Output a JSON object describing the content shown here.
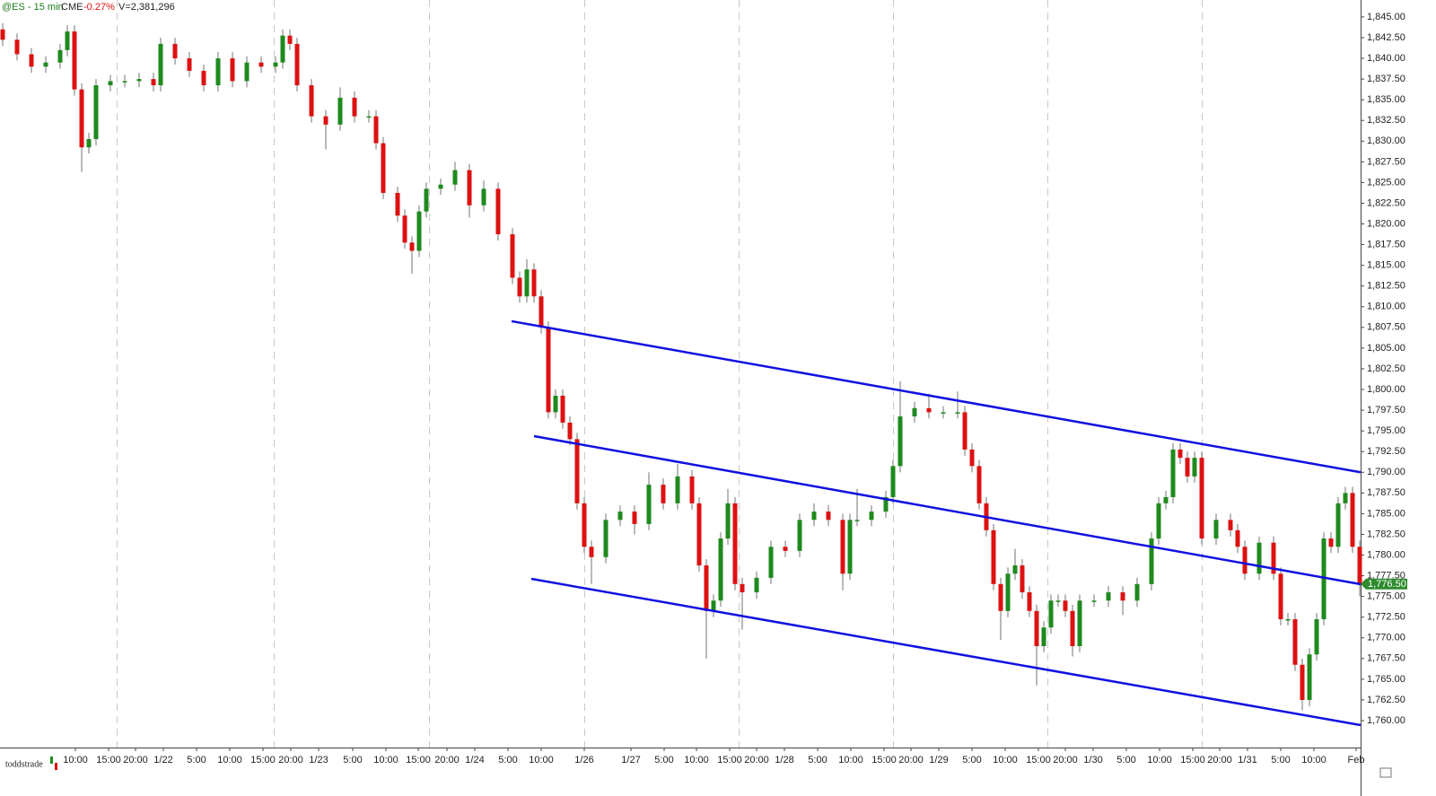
{
  "header": {
    "symbol": "@ES - 15 min",
    "exchange": "CME",
    "change": "-0.27%",
    "volume": "V=2,381,296"
  },
  "footer": {
    "user": "toddstrade"
  },
  "chart_data": {
    "type": "candlestick",
    "colors": {
      "up": "#1e8a1e",
      "down": "#dd1111",
      "wick": "#8a8a8a",
      "channel": "#1010e0",
      "last": "#2e8b2e"
    },
    "xlim": [
      0,
      1516
    ],
    "ylim": [
      1756.75,
      1847.05
    ],
    "session_breaks": [
      130,
      305,
      478,
      651,
      823,
      995,
      1167,
      1339
    ],
    "xticks": [
      {
        "value": 84,
        "label": "10:00"
      },
      {
        "value": 121,
        "label": "15:00"
      },
      {
        "value": 151,
        "label": "20:00"
      },
      {
        "value": 182,
        "label": "1/22"
      },
      {
        "value": 219,
        "label": "5:00"
      },
      {
        "value": 256,
        "label": "10:00"
      },
      {
        "value": 293,
        "label": "15:00"
      },
      {
        "value": 324,
        "label": "20:00"
      },
      {
        "value": 355,
        "label": "1/23"
      },
      {
        "value": 393,
        "label": "5:00"
      },
      {
        "value": 430,
        "label": "10:00"
      },
      {
        "value": 466,
        "label": "15:00"
      },
      {
        "value": 498,
        "label": "20:00"
      },
      {
        "value": 529,
        "label": "1/24"
      },
      {
        "value": 566,
        "label": "5:00"
      },
      {
        "value": 603,
        "label": "10:00"
      },
      {
        "value": 651,
        "label": "1/26"
      },
      {
        "value": 703,
        "label": "1/27"
      },
      {
        "value": 740,
        "label": "5:00"
      },
      {
        "value": 776,
        "label": "10:00"
      },
      {
        "value": 813,
        "label": "15:00"
      },
      {
        "value": 843,
        "label": "20:00"
      },
      {
        "value": 874,
        "label": "1/28"
      },
      {
        "value": 911,
        "label": "5:00"
      },
      {
        "value": 948,
        "label": "10:00"
      },
      {
        "value": 985,
        "label": "15:00"
      },
      {
        "value": 1015,
        "label": "20:00"
      },
      {
        "value": 1046,
        "label": "1/29"
      },
      {
        "value": 1083,
        "label": "5:00"
      },
      {
        "value": 1120,
        "label": "10:00"
      },
      {
        "value": 1157,
        "label": "15:00"
      },
      {
        "value": 1187,
        "label": "20:00"
      },
      {
        "value": 1218,
        "label": "1/30"
      },
      {
        "value": 1255,
        "label": "5:00"
      },
      {
        "value": 1292,
        "label": "10:00"
      },
      {
        "value": 1329,
        "label": "15:00"
      },
      {
        "value": 1359,
        "label": "20:00"
      },
      {
        "value": 1390,
        "label": "1/31"
      },
      {
        "value": 1427,
        "label": "5:00"
      },
      {
        "value": 1464,
        "label": "10:00"
      },
      {
        "value": 1511,
        "label": "Feb"
      }
    ],
    "yticks": [
      {
        "value": 1760,
        "label": "1,760.00"
      },
      {
        "value": 1762.5,
        "label": "1,762.50"
      },
      {
        "value": 1765,
        "label": "1,765.00"
      },
      {
        "value": 1767.5,
        "label": "1,767.50"
      },
      {
        "value": 1770,
        "label": "1,770.00"
      },
      {
        "value": 1772.5,
        "label": "1,772.50"
      },
      {
        "value": 1775,
        "label": "1,775.00"
      },
      {
        "value": 1777.5,
        "label": "1,777.50"
      },
      {
        "value": 1780,
        "label": "1,780.00"
      },
      {
        "value": 1782.5,
        "label": "1,782.50"
      },
      {
        "value": 1785,
        "label": "1,785.00"
      },
      {
        "value": 1787.5,
        "label": "1,787.50"
      },
      {
        "value": 1790,
        "label": "1,790.00"
      },
      {
        "value": 1792.5,
        "label": "1,792.50"
      },
      {
        "value": 1795,
        "label": "1,795.00"
      },
      {
        "value": 1797.5,
        "label": "1,797.50"
      },
      {
        "value": 1800,
        "label": "1,800.00"
      },
      {
        "value": 1802.5,
        "label": "1,802.50"
      },
      {
        "value": 1805,
        "label": "1,805.00"
      },
      {
        "value": 1807.5,
        "label": "1,807.50"
      },
      {
        "value": 1810,
        "label": "1,810.00"
      },
      {
        "value": 1812.5,
        "label": "1,812.50"
      },
      {
        "value": 1815,
        "label": "1,815.00"
      },
      {
        "value": 1817.5,
        "label": "1,817.50"
      },
      {
        "value": 1820,
        "label": "1,820.00"
      },
      {
        "value": 1822.5,
        "label": "1,822.50"
      },
      {
        "value": 1825,
        "label": "1,825.00"
      },
      {
        "value": 1827.5,
        "label": "1,827.50"
      },
      {
        "value": 1830,
        "label": "1,830.00"
      },
      {
        "value": 1832.5,
        "label": "1,832.50"
      },
      {
        "value": 1835,
        "label": "1,835.00"
      },
      {
        "value": 1837.5,
        "label": "1,837.50"
      },
      {
        "value": 1840,
        "label": "1,840.00"
      },
      {
        "value": 1842.5,
        "label": "1,842.50"
      },
      {
        "value": 1845,
        "label": "1,845.00"
      }
    ],
    "last_price": {
      "value": 1776.5,
      "label": "1,776.50"
    },
    "channel_lines": [
      {
        "x": [
          570,
          1516
        ],
        "y": [
          1808.25,
          1790
        ]
      },
      {
        "x": [
          595,
          1516
        ],
        "y": [
          1794.37,
          1776.48
        ]
      },
      {
        "x": [
          592,
          1516
        ],
        "y": [
          1777.13,
          1759.46
        ]
      }
    ],
    "x": [
      0,
      16,
      32,
      48,
      64,
      72,
      80,
      88,
      96,
      104,
      120,
      136,
      152,
      168,
      176,
      192,
      208,
      224,
      240,
      256,
      272,
      288,
      304,
      312,
      320,
      328,
      344,
      360,
      376,
      392,
      408,
      416,
      424,
      440,
      448,
      456,
      464,
      472,
      488,
      504,
      520,
      536,
      552,
      568,
      576,
      584,
      592,
      600,
      608,
      616,
      624,
      632,
      640,
      648,
      656,
      672,
      688,
      704,
      720,
      736,
      752,
      768,
      776,
      784,
      792,
      800,
      808,
      816,
      824,
      840,
      856,
      872,
      888,
      904,
      920,
      936,
      944,
      952,
      968,
      984,
      992,
      1000,
      1016,
      1032,
      1048,
      1064,
      1072,
      1080,
      1088,
      1096,
      1104,
      1112,
      1120,
      1128,
      1136,
      1144,
      1152,
      1160,
      1168,
      1176,
      1184,
      1192,
      1200,
      1216,
      1232,
      1248,
      1264,
      1280,
      1288,
      1296,
      1304,
      1312,
      1320,
      1328,
      1336,
      1352,
      1368,
      1376,
      1384,
      1400,
      1416,
      1424,
      1432,
      1440,
      1448,
      1456,
      1464,
      1472,
      1480,
      1488,
      1496,
      1504,
      1512
    ],
    "open": [
      1843.5,
      1842.25,
      1840.5,
      1839,
      1839.5,
      1841,
      1843.25,
      1836.25,
      1829.25,
      1830.25,
      1836.75,
      1837.25,
      1837.25,
      1837.5,
      1836.75,
      1841.75,
      1840,
      1838.5,
      1836.75,
      1840,
      1837.25,
      1839.5,
      1839,
      1839.5,
      1842.75,
      1841.75,
      1836.75,
      1833,
      1832,
      1835.25,
      1833,
      1833,
      1829.75,
      1823.75,
      1821,
      1817.75,
      1816.75,
      1821.5,
      1824.25,
      1824.75,
      1826.5,
      1822.25,
      1824.25,
      1818.75,
      1813.5,
      1811.25,
      1814.5,
      1811.25,
      1807.5,
      1797.25,
      1799.25,
      1796,
      1794,
      1786.25,
      1781,
      1779.75,
      1784.25,
      1785.25,
      1783.75,
      1788.5,
      1786.25,
      1789.5,
      1786.25,
      1778.75,
      1773.25,
      1774.5,
      1782,
      1786.25,
      1776.5,
      1775.5,
      1777.25,
      1781,
      1780.5,
      1784.25,
      1785.25,
      1784.25,
      1777.75,
      1784.25,
      1784.25,
      1785.25,
      1787,
      1790.75,
      1796.75,
      1797.75,
      1797.25,
      1797.25,
      1797.25,
      1792.75,
      1790.75,
      1786.25,
      1783,
      1776.5,
      1773.25,
      1777.75,
      1778.75,
      1775.5,
      1773.25,
      1769,
      1771.25,
      1774.5,
      1774.5,
      1773.25,
      1769,
      1774.5,
      1774.5,
      1775.5,
      1774.5,
      1776.5,
      1782,
      1786.25,
      1787,
      1792.75,
      1791.75,
      1789.5,
      1791.75,
      1782,
      1784.25,
      1783,
      1781,
      1777.75,
      1781.5,
      1777.75,
      1772.25,
      1772.25,
      1766.75,
      1762.5,
      1768,
      1772.25,
      1782,
      1781,
      1786.25,
      1787.5,
      1781
    ],
    "high": [
      1844.25,
      1843,
      1841.25,
      1840.25,
      1841.75,
      1844,
      1844,
      1837,
      1831,
      1837.5,
      1838,
      1838,
      1838.25,
      1838.25,
      1842.5,
      1842.5,
      1840.75,
      1839.25,
      1840.75,
      1840.75,
      1840.25,
      1840.25,
      1840.25,
      1843.5,
      1843.5,
      1842.5,
      1837.5,
      1833.75,
      1836.5,
      1836,
      1833.75,
      1833.75,
      1830.5,
      1824.5,
      1821.75,
      1818.5,
      1822.25,
      1825,
      1825.5,
      1827.5,
      1827.25,
      1825.25,
      1825,
      1819.5,
      1814.25,
      1815.75,
      1815.25,
      1812,
      1808.25,
      1800,
      1800,
      1796.75,
      1794.75,
      1787,
      1781.75,
      1785,
      1786,
      1786,
      1790,
      1789.25,
      1791,
      1790.25,
      1787,
      1779.5,
      1775.25,
      1782.75,
      1788,
      1787,
      1777.25,
      1778,
      1781.75,
      1781.75,
      1785,
      1786.25,
      1786,
      1785,
      1785,
      1788,
      1786,
      1787.75,
      1791.5,
      1801,
      1798.5,
      1799.5,
      1798,
      1799.75,
      1798,
      1793.5,
      1791.5,
      1787,
      1783.75,
      1777.25,
      1778.5,
      1780.75,
      1779.5,
      1776.25,
      1774,
      1772,
      1775.25,
      1775.25,
      1775.25,
      1774,
      1775.25,
      1775.25,
      1776.25,
      1776.25,
      1777.25,
      1782.75,
      1787,
      1787.75,
      1793.5,
      1793.5,
      1792.5,
      1792.5,
      1792.5,
      1785,
      1785,
      1783.75,
      1781.75,
      1782.25,
      1782.25,
      1778.5,
      1773,
      1773,
      1767.5,
      1768.75,
      1773,
      1782.75,
      1782.75,
      1787,
      1788.25,
      1788.25,
      1781.75
    ],
    "low": [
      1841.5,
      1839.75,
      1838.25,
      1838.25,
      1838.75,
      1840.25,
      1835.5,
      1826.25,
      1828.5,
      1829.5,
      1836,
      1836.5,
      1836.5,
      1836,
      1836,
      1839.25,
      1837.75,
      1836,
      1836,
      1836.5,
      1836.5,
      1838.25,
      1838.25,
      1838.75,
      1841,
      1836,
      1832.25,
      1829,
      1831.25,
      1832.25,
      1832.25,
      1829,
      1823,
      1820.25,
      1817,
      1814,
      1816,
      1820.75,
      1823.5,
      1824,
      1820.75,
      1821.5,
      1818,
      1812.75,
      1810.5,
      1810.5,
      1810.5,
      1806.75,
      1796.5,
      1796.5,
      1795.25,
      1793.25,
      1785.5,
      1780.25,
      1776.5,
      1779,
      1783.5,
      1782.5,
      1783,
      1785.5,
      1785.5,
      1785.5,
      1778,
      1767.5,
      1772.5,
      1773.75,
      1781.25,
      1775.75,
      1771,
      1774.75,
      1776.5,
      1779.75,
      1779.75,
      1783.5,
      1783.5,
      1775.75,
      1777,
      1783.5,
      1783.5,
      1784.5,
      1786.25,
      1790,
      1796,
      1796.5,
      1796.5,
      1796.5,
      1792,
      1790,
      1785.5,
      1782.25,
      1775.75,
      1769.75,
      1772.5,
      1777,
      1774.75,
      1772.5,
      1764.25,
      1768.25,
      1770.5,
      1773.75,
      1772.5,
      1767.75,
      1768.25,
      1773.75,
      1773.75,
      1772.75,
      1773.75,
      1775.75,
      1781.25,
      1785.5,
      1786.25,
      1791,
      1788.75,
      1788.75,
      1781.25,
      1781.25,
      1782.25,
      1780.25,
      1777,
      1777,
      1777,
      1771.5,
      1771.5,
      1766,
      1761.25,
      1761.75,
      1767.25,
      1771.5,
      1780.25,
      1780.25,
      1785.5,
      1780.25,
      1775
    ],
    "close": [
      1842.25,
      1840.5,
      1839,
      1839.5,
      1841,
      1843.25,
      1836.25,
      1829.25,
      1830.25,
      1836.75,
      1837.25,
      1837.25,
      1837.5,
      1836.75,
      1841.75,
      1840,
      1838.5,
      1836.75,
      1840,
      1837.25,
      1839.5,
      1839,
      1839.5,
      1842.75,
      1841.75,
      1836.75,
      1833,
      1832,
      1835.25,
      1833,
      1833,
      1829.75,
      1823.75,
      1821,
      1817.75,
      1816.75,
      1821.5,
      1824.25,
      1824.75,
      1826.5,
      1822.25,
      1824.25,
      1818.75,
      1813.5,
      1811.25,
      1814.5,
      1811.25,
      1807.5,
      1797.25,
      1799.25,
      1796,
      1794,
      1786.25,
      1781,
      1779.75,
      1784.25,
      1785.25,
      1783.75,
      1788.5,
      1786.25,
      1789.5,
      1786.25,
      1778.75,
      1773.25,
      1774.5,
      1782,
      1786.25,
      1776.5,
      1775.5,
      1777.25,
      1781,
      1780.5,
      1784.25,
      1785.25,
      1784.25,
      1777.75,
      1784.25,
      1784.25,
      1785.25,
      1787,
      1790.75,
      1796.75,
      1797.75,
      1797.25,
      1797.25,
      1797.25,
      1792.75,
      1790.75,
      1786.25,
      1783,
      1776.5,
      1773.25,
      1777.75,
      1778.75,
      1775.5,
      1773.25,
      1769,
      1771.25,
      1774.5,
      1774.5,
      1773.25,
      1769,
      1774.5,
      1774.5,
      1775.5,
      1774.5,
      1776.5,
      1782,
      1786.25,
      1787,
      1792.75,
      1791.75,
      1789.5,
      1791.75,
      1782,
      1784.25,
      1783,
      1781,
      1777.75,
      1781.5,
      1777.75,
      1772.25,
      1772.25,
      1766.75,
      1762.5,
      1768,
      1772.25,
      1782,
      1781,
      1786.25,
      1787.5,
      1781,
      1776.5
    ]
  }
}
